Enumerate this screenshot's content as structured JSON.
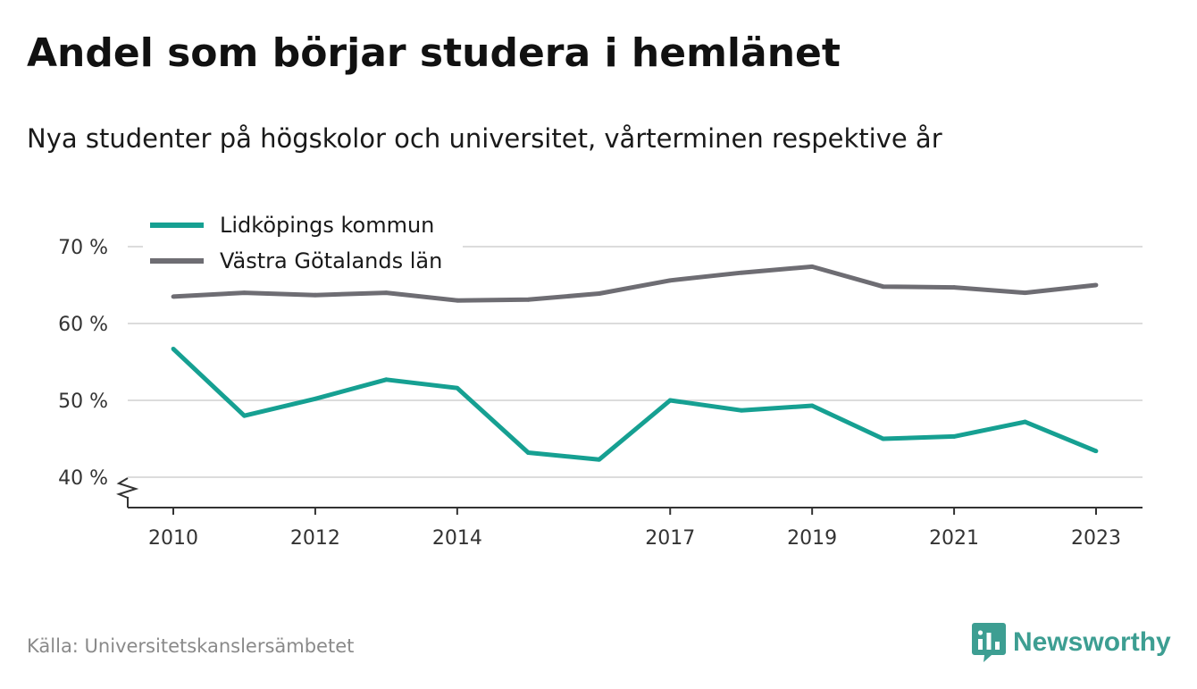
{
  "title": "Andel som börjar studera i hemlänet",
  "subtitle": "Nya studenter på högskolor och universitet, vårterminen respektive år",
  "source": "Källa: Universitetskanslersämbetet",
  "brand": "Newsworthy",
  "colors": {
    "series_1": "#16a092",
    "series_2": "#6e6d73",
    "grid": "#dcdcdc",
    "axis": "#333333",
    "brand": "#3d9e92"
  },
  "chart_data": {
    "type": "line",
    "x": [
      2010,
      2011,
      2012,
      2013,
      2014,
      2015,
      2016,
      2017,
      2018,
      2019,
      2020,
      2021,
      2022,
      2023
    ],
    "x_ticks": [
      "2010",
      "2012",
      "2014",
      "2017",
      "2019",
      "2021",
      "2023"
    ],
    "y_ticks": [
      "40 %",
      "50 %",
      "60 %",
      "70 %"
    ],
    "ylim": [
      36,
      72
    ],
    "grid": true,
    "axis_break": true,
    "legend_position": "top-left",
    "series": [
      {
        "name": "Lidköpings kommun",
        "values": [
          56.7,
          48.0,
          50.2,
          52.7,
          51.6,
          43.2,
          42.3,
          50.0,
          48.7,
          49.3,
          45.0,
          45.3,
          47.2,
          43.4
        ]
      },
      {
        "name": "Västra Götalands län",
        "values": [
          63.5,
          64.0,
          63.7,
          64.0,
          63.0,
          63.1,
          63.9,
          65.6,
          66.6,
          67.4,
          64.8,
          64.7,
          64.0,
          65.0
        ]
      }
    ]
  }
}
